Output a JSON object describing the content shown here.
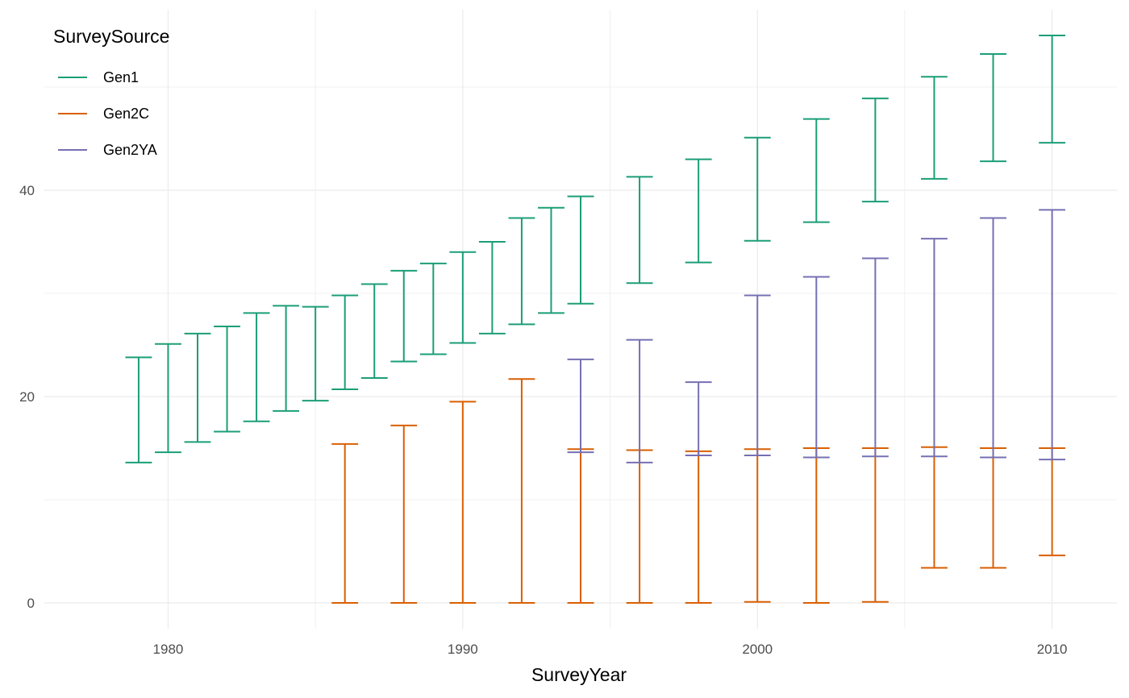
{
  "chart_data": {
    "type": "errorbar",
    "xlabel": "SurveyYear",
    "ylabel": "",
    "xlim": [
      1975.8,
      2012.2
    ],
    "ylim": [
      -2.5,
      57.5
    ],
    "x_ticks": [
      1980,
      1990,
      2000,
      2010
    ],
    "y_ticks": [
      0,
      20,
      40
    ],
    "grid": true,
    "legend": {
      "title": "SurveySource",
      "position": "top-left"
    },
    "colors": {
      "Gen1": "#1b9e77",
      "Gen2C": "#d95f02",
      "Gen2YA": "#7570b3"
    },
    "series": [
      {
        "name": "Gen1",
        "points": [
          {
            "x": 1979,
            "ymin": 13.6,
            "ymax": 23.8
          },
          {
            "x": 1980,
            "ymin": 14.6,
            "ymax": 25.1
          },
          {
            "x": 1981,
            "ymin": 15.6,
            "ymax": 26.1
          },
          {
            "x": 1982,
            "ymin": 16.6,
            "ymax": 26.8
          },
          {
            "x": 1983,
            "ymin": 17.6,
            "ymax": 28.1
          },
          {
            "x": 1984,
            "ymin": 18.6,
            "ymax": 28.8
          },
          {
            "x": 1985,
            "ymin": 19.6,
            "ymax": 28.7
          },
          {
            "x": 1986,
            "ymin": 20.7,
            "ymax": 29.8
          },
          {
            "x": 1987,
            "ymin": 21.8,
            "ymax": 30.9
          },
          {
            "x": 1988,
            "ymin": 23.4,
            "ymax": 32.2
          },
          {
            "x": 1989,
            "ymin": 24.1,
            "ymax": 32.9
          },
          {
            "x": 1990,
            "ymin": 25.2,
            "ymax": 34.0
          },
          {
            "x": 1991,
            "ymin": 26.1,
            "ymax": 35.0
          },
          {
            "x": 1992,
            "ymin": 27.0,
            "ymax": 37.3
          },
          {
            "x": 1993,
            "ymin": 28.1,
            "ymax": 38.3
          },
          {
            "x": 1994,
            "ymin": 29.0,
            "ymax": 39.4
          },
          {
            "x": 1996,
            "ymin": 31.0,
            "ymax": 41.3
          },
          {
            "x": 1998,
            "ymin": 33.0,
            "ymax": 43.0
          },
          {
            "x": 2000,
            "ymin": 35.1,
            "ymax": 45.1
          },
          {
            "x": 2002,
            "ymin": 36.9,
            "ymax": 46.9
          },
          {
            "x": 2004,
            "ymin": 38.9,
            "ymax": 48.9
          },
          {
            "x": 2006,
            "ymin": 41.1,
            "ymax": 51.0
          },
          {
            "x": 2008,
            "ymin": 42.8,
            "ymax": 53.2
          },
          {
            "x": 2010,
            "ymin": 44.6,
            "ymax": 55.0
          }
        ]
      },
      {
        "name": "Gen2C",
        "points": [
          {
            "x": 1986,
            "ymin": 0.0,
            "ymax": 15.4
          },
          {
            "x": 1988,
            "ymin": 0.0,
            "ymax": 17.2
          },
          {
            "x": 1990,
            "ymin": 0.0,
            "ymax": 19.5
          },
          {
            "x": 1992,
            "ymin": 0.0,
            "ymax": 21.7
          },
          {
            "x": 1994,
            "ymin": 0.0,
            "ymax": 14.9
          },
          {
            "x": 1996,
            "ymin": 0.0,
            "ymax": 14.8
          },
          {
            "x": 1998,
            "ymin": 0.0,
            "ymax": 14.7
          },
          {
            "x": 2000,
            "ymin": 0.1,
            "ymax": 14.9
          },
          {
            "x": 2002,
            "ymin": 0.0,
            "ymax": 15.0
          },
          {
            "x": 2004,
            "ymin": 0.1,
            "ymax": 15.0
          },
          {
            "x": 2006,
            "ymin": 3.4,
            "ymax": 15.1
          },
          {
            "x": 2008,
            "ymin": 3.4,
            "ymax": 15.0
          },
          {
            "x": 2010,
            "ymin": 4.6,
            "ymax": 15.0
          }
        ]
      },
      {
        "name": "Gen2YA",
        "points": [
          {
            "x": 1994,
            "ymin": 14.6,
            "ymax": 23.6
          },
          {
            "x": 1996,
            "ymin": 13.6,
            "ymax": 25.5
          },
          {
            "x": 1998,
            "ymin": 14.3,
            "ymax": 21.4
          },
          {
            "x": 2000,
            "ymin": 14.3,
            "ymax": 29.8
          },
          {
            "x": 2002,
            "ymin": 14.1,
            "ymax": 31.6
          },
          {
            "x": 2004,
            "ymin": 14.2,
            "ymax": 33.4
          },
          {
            "x": 2006,
            "ymin": 14.2,
            "ymax": 35.3
          },
          {
            "x": 2008,
            "ymin": 14.1,
            "ymax": 37.3
          },
          {
            "x": 2010,
            "ymin": 13.9,
            "ymax": 38.1
          }
        ]
      }
    ]
  }
}
